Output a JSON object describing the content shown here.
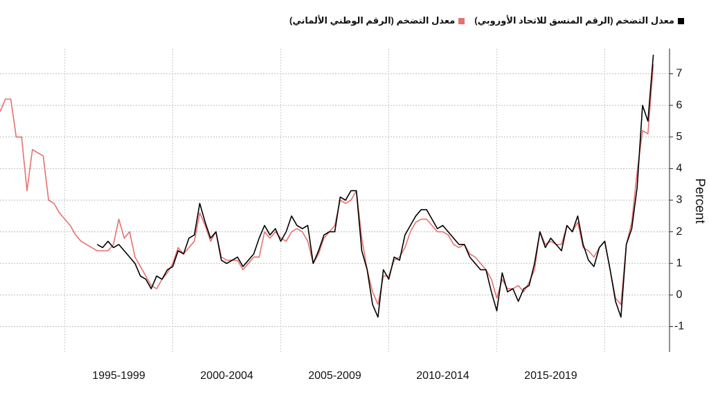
{
  "chart_data": {
    "type": "line",
    "y_label": "Percent",
    "x": [
      1992,
      1992.25,
      1992.5,
      1992.75,
      1993,
      1993.25,
      1993.5,
      1993.75,
      1994,
      1994.25,
      1994.5,
      1994.75,
      1995,
      1995.25,
      1995.5,
      1995.75,
      1996,
      1996.25,
      1996.5,
      1996.75,
      1997,
      1997.25,
      1997.5,
      1997.75,
      1998,
      1998.25,
      1998.5,
      1998.75,
      1999,
      1999.25,
      1999.5,
      1999.75,
      2000,
      2000.25,
      2000.5,
      2000.75,
      2001,
      2001.25,
      2001.5,
      2001.75,
      2002,
      2002.25,
      2002.5,
      2002.75,
      2003,
      2003.25,
      2003.5,
      2003.75,
      2004,
      2004.25,
      2004.5,
      2004.75,
      2005,
      2005.25,
      2005.5,
      2005.75,
      2006,
      2006.25,
      2006.5,
      2006.75,
      2007,
      2007.25,
      2007.5,
      2007.75,
      2008,
      2008.25,
      2008.5,
      2008.75,
      2009,
      2009.25,
      2009.5,
      2009.75,
      2010,
      2010.25,
      2010.5,
      2010.75,
      2011,
      2011.25,
      2011.5,
      2011.75,
      2012,
      2012.25,
      2012.5,
      2012.75,
      2013,
      2013.25,
      2013.5,
      2013.75,
      2014,
      2014.25,
      2014.5,
      2014.75,
      2015,
      2015.25,
      2015.5,
      2015.75,
      2016,
      2016.25,
      2016.5,
      2016.75,
      2017,
      2017.25,
      2017.5,
      2017.75,
      2018,
      2018.25,
      2018.5,
      2018.75,
      2019,
      2019.25,
      2019.5,
      2019.75,
      2020,
      2020.25,
      2020.5,
      2020.75,
      2021,
      2021.25,
      2021.5,
      2021.75,
      2022,
      2022.25
    ],
    "series": [
      {
        "name": "معدل التضخم (الرقم المنسق للاتحاد الأوروبي)",
        "color": "#000000",
        "values": [
          null,
          null,
          null,
          null,
          null,
          null,
          null,
          null,
          null,
          null,
          null,
          null,
          null,
          null,
          null,
          null,
          null,
          null,
          1.6,
          1.5,
          1.7,
          1.5,
          1.6,
          1.4,
          1.2,
          1.0,
          0.6,
          0.5,
          0.2,
          0.6,
          0.5,
          0.8,
          0.9,
          1.4,
          1.3,
          1.8,
          1.9,
          2.9,
          2.3,
          1.8,
          2.0,
          1.1,
          1.0,
          1.1,
          1.2,
          0.9,
          1.1,
          1.3,
          1.8,
          2.2,
          1.9,
          2.1,
          1.7,
          2.0,
          2.5,
          2.2,
          2.1,
          2.2,
          1.0,
          1.4,
          1.9,
          2.0,
          2.0,
          3.1,
          3.0,
          3.3,
          3.3,
          1.4,
          0.8,
          -0.3,
          -0.7,
          0.8,
          0.5,
          1.2,
          1.1,
          1.9,
          2.2,
          2.5,
          2.7,
          2.7,
          2.4,
          2.1,
          2.2,
          2.0,
          1.8,
          1.6,
          1.6,
          1.2,
          1.0,
          0.8,
          0.8,
          0.1,
          -0.5,
          0.7,
          0.1,
          0.2,
          -0.2,
          0.2,
          0.3,
          1.0,
          2.0,
          1.5,
          1.8,
          1.6,
          1.4,
          2.2,
          2.0,
          2.5,
          1.6,
          1.1,
          0.9,
          1.5,
          1.7,
          0.8,
          -0.2,
          -0.7,
          1.6,
          2.1,
          3.4,
          6.0,
          5.5,
          7.6
        ]
      },
      {
        "name": "معدل التضخم (الرقم الوطني الألماني)",
        "color": "#e8706f",
        "values": [
          5.8,
          6.2,
          6.2,
          5.0,
          5.0,
          3.3,
          4.6,
          4.5,
          4.4,
          3.0,
          2.9,
          2.6,
          2.4,
          2.2,
          1.9,
          1.7,
          1.6,
          1.5,
          1.4,
          1.4,
          1.4,
          1.6,
          2.4,
          1.8,
          2.0,
          1.2,
          0.9,
          0.6,
          0.3,
          0.2,
          0.5,
          0.7,
          1.0,
          1.5,
          1.3,
          1.5,
          1.7,
          2.6,
          2.2,
          1.7,
          2.0,
          1.2,
          1.1,
          1.1,
          1.1,
          0.8,
          1.0,
          1.2,
          1.2,
          2.0,
          1.8,
          2.0,
          1.8,
          1.7,
          2.0,
          2.1,
          2.0,
          1.7,
          1.0,
          1.3,
          1.8,
          2.0,
          2.2,
          3.0,
          2.9,
          3.0,
          3.3,
          1.8,
          0.8,
          0.1,
          -0.3,
          0.6,
          0.6,
          1.1,
          1.2,
          1.5,
          2.0,
          2.3,
          2.4,
          2.4,
          2.2,
          2.0,
          2.0,
          1.9,
          1.6,
          1.5,
          1.6,
          1.3,
          1.2,
          1.0,
          0.8,
          0.5,
          -0.1,
          0.5,
          0.2,
          0.2,
          0.3,
          0.1,
          0.4,
          0.8,
          2.0,
          1.6,
          1.7,
          1.6,
          1.6,
          2.2,
          2.0,
          2.3,
          1.5,
          1.4,
          1.2,
          1.5,
          1.7,
          0.8,
          -0.1,
          -0.3,
          1.6,
          2.3,
          3.9,
          5.2,
          5.1,
          7.3
        ]
      }
    ],
    "xlim": [
      1992,
      2023
    ],
    "xticks": [
      {
        "value": 1997.5,
        "label": "1995-1999"
      },
      {
        "value": 2002.5,
        "label": "2000-2004"
      },
      {
        "value": 2007.5,
        "label": "2005-2009"
      },
      {
        "value": 2012.5,
        "label": "2010-2014"
      },
      {
        "value": 2017.5,
        "label": "2015-2019"
      }
    ],
    "x_grid": [
      1995,
      2000,
      2005,
      2010,
      2015,
      2020
    ],
    "ylim": [
      -1.8,
      7.8
    ],
    "yticks": [
      -1,
      0,
      1,
      2,
      3,
      4,
      5,
      6,
      7
    ],
    "grid": true
  }
}
